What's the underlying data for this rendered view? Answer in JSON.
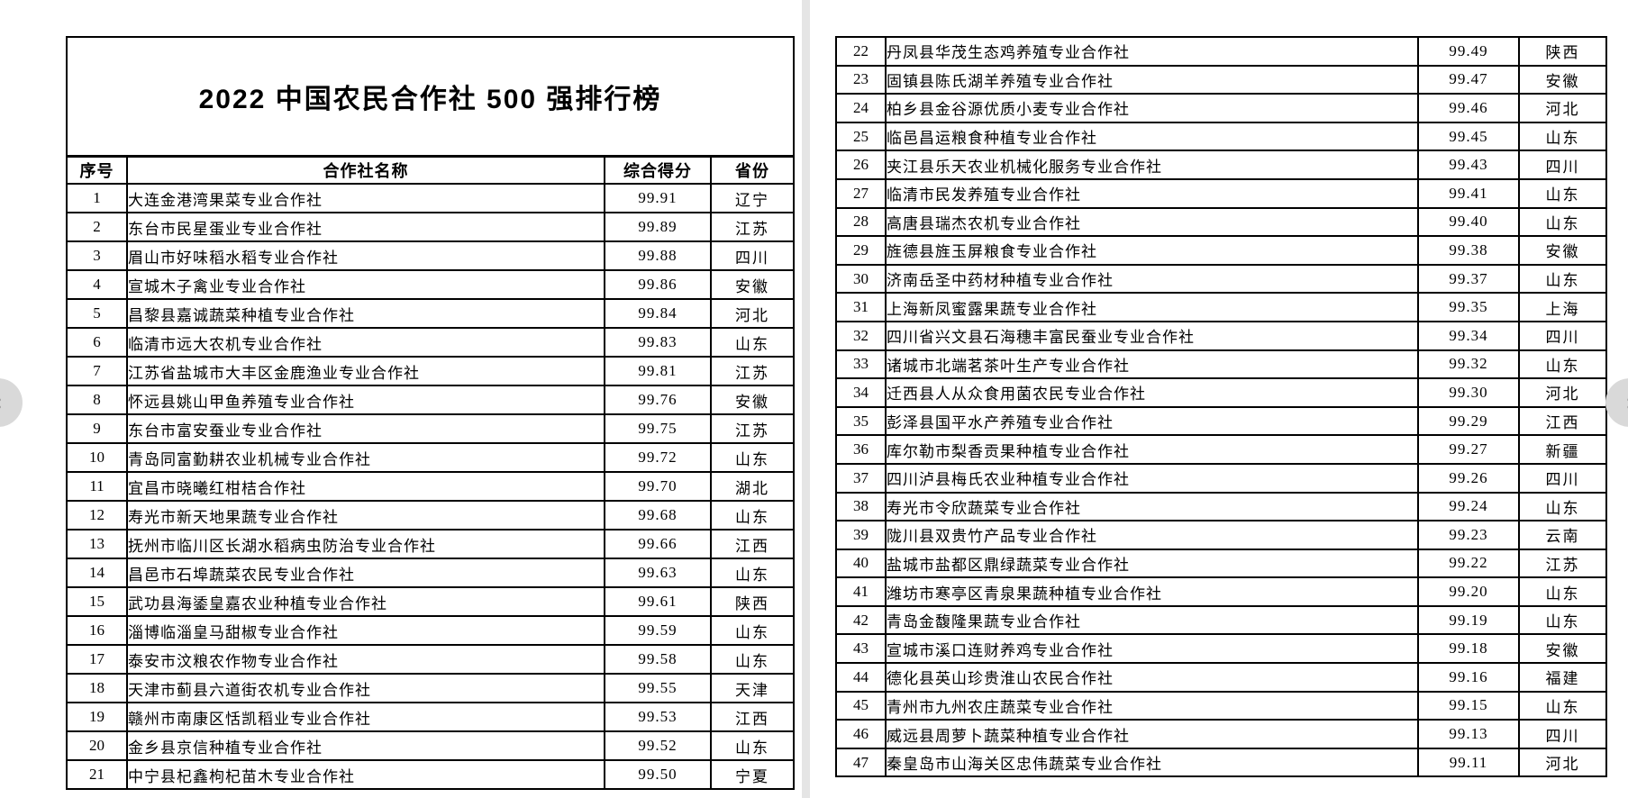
{
  "title": "2022 中国农民合作社 500 强排行榜",
  "columns": [
    "序号",
    "合作社名称",
    "综合得分",
    "省份"
  ],
  "pages": {
    "left": {
      "rows": [
        {
          "rank": "1",
          "name": "大连金港湾果菜专业合作社",
          "score": "99.91",
          "province": "辽宁"
        },
        {
          "rank": "2",
          "name": "东台市民星蛋业专业合作社",
          "score": "99.89",
          "province": "江苏"
        },
        {
          "rank": "3",
          "name": "眉山市好味稻水稻专业合作社",
          "score": "99.88",
          "province": "四川"
        },
        {
          "rank": "4",
          "name": "宣城木子禽业专业合作社",
          "score": "99.86",
          "province": "安徽"
        },
        {
          "rank": "5",
          "name": "昌黎县嘉诚蔬菜种植专业合作社",
          "score": "99.84",
          "province": "河北"
        },
        {
          "rank": "6",
          "name": "临清市远大农机专业合作社",
          "score": "99.83",
          "province": "山东"
        },
        {
          "rank": "7",
          "name": "江苏省盐城市大丰区金鹿渔业专业合作社",
          "score": "99.81",
          "province": "江苏"
        },
        {
          "rank": "8",
          "name": "怀远县姚山甲鱼养殖专业合作社",
          "score": "99.76",
          "province": "安徽"
        },
        {
          "rank": "9",
          "name": "东台市富安蚕业专业合作社",
          "score": "99.75",
          "province": "江苏"
        },
        {
          "rank": "10",
          "name": "青岛同富勤耕农业机械专业合作社",
          "score": "99.72",
          "province": "山东"
        },
        {
          "rank": "11",
          "name": "宜昌市晓曦红柑桔合作社",
          "score": "99.70",
          "province": "湖北"
        },
        {
          "rank": "12",
          "name": "寿光市新天地果蔬专业合作社",
          "score": "99.68",
          "province": "山东"
        },
        {
          "rank": "13",
          "name": "抚州市临川区长湖水稻病虫防治专业合作社",
          "score": "99.66",
          "province": "江西"
        },
        {
          "rank": "14",
          "name": "昌邑市石埠蔬菜农民专业合作社",
          "score": "99.63",
          "province": "山东"
        },
        {
          "rank": "15",
          "name": "武功县海鋈皇嘉农业种植专业合作社",
          "score": "99.61",
          "province": "陕西"
        },
        {
          "rank": "16",
          "name": "淄博临淄皇马甜椒专业合作社",
          "score": "99.59",
          "province": "山东"
        },
        {
          "rank": "17",
          "name": "泰安市汶粮农作物专业合作社",
          "score": "99.58",
          "province": "山东"
        },
        {
          "rank": "18",
          "name": "天津市蓟县六道街农机专业合作社",
          "score": "99.55",
          "province": "天津"
        },
        {
          "rank": "19",
          "name": "赣州市南康区恬凯稻业专业合作社",
          "score": "99.53",
          "province": "江西"
        },
        {
          "rank": "20",
          "name": "金乡县京信种植专业合作社",
          "score": "99.52",
          "province": "山东"
        },
        {
          "rank": "21",
          "name": "中宁县杞鑫枸杞苗木专业合作社",
          "score": "99.50",
          "province": "宁夏"
        }
      ]
    },
    "right": {
      "rows": [
        {
          "rank": "22",
          "name": "丹凤县华茂生态鸡养殖专业合作社",
          "score": "99.49",
          "province": "陕西"
        },
        {
          "rank": "23",
          "name": "固镇县陈氏湖羊养殖专业合作社",
          "score": "99.47",
          "province": "安徽"
        },
        {
          "rank": "24",
          "name": "柏乡县金谷源优质小麦专业合作社",
          "score": "99.46",
          "province": "河北"
        },
        {
          "rank": "25",
          "name": "临邑昌运粮食种植专业合作社",
          "score": "99.45",
          "province": "山东"
        },
        {
          "rank": "26",
          "name": "夹江县乐天农业机械化服务专业合作社",
          "score": "99.43",
          "province": "四川"
        },
        {
          "rank": "27",
          "name": "临清市民发养殖专业合作社",
          "score": "99.41",
          "province": "山东"
        },
        {
          "rank": "28",
          "name": "高唐县瑞杰农机专业合作社",
          "score": "99.40",
          "province": "山东"
        },
        {
          "rank": "29",
          "name": "旌德县旌玉屏粮食专业合作社",
          "score": "99.38",
          "province": "安徽"
        },
        {
          "rank": "30",
          "name": "济南岳圣中药材种植专业合作社",
          "score": "99.37",
          "province": "山东"
        },
        {
          "rank": "31",
          "name": "上海新凤蜜露果蔬专业合作社",
          "score": "99.35",
          "province": "上海"
        },
        {
          "rank": "32",
          "name": "四川省兴文县石海穗丰富民蚕业专业合作社",
          "score": "99.34",
          "province": "四川"
        },
        {
          "rank": "33",
          "name": "诸城市北端茗茶叶生产专业合作社",
          "score": "99.32",
          "province": "山东"
        },
        {
          "rank": "34",
          "name": "迁西县人从众食用菌农民专业合作社",
          "score": "99.30",
          "province": "河北"
        },
        {
          "rank": "35",
          "name": "彭泽县国平水产养殖专业合作社",
          "score": "99.29",
          "province": "江西"
        },
        {
          "rank": "36",
          "name": "库尔勒市梨香贡果种植专业合作社",
          "score": "99.27",
          "province": "新疆"
        },
        {
          "rank": "37",
          "name": "四川泸县梅氏农业种植专业合作社",
          "score": "99.26",
          "province": "四川"
        },
        {
          "rank": "38",
          "name": "寿光市令欣蔬菜专业合作社",
          "score": "99.24",
          "province": "山东"
        },
        {
          "rank": "39",
          "name": "陇川县双贵竹产品专业合作社",
          "score": "99.23",
          "province": "云南"
        },
        {
          "rank": "40",
          "name": "盐城市盐都区鼎绿蔬菜专业合作社",
          "score": "99.22",
          "province": "江苏"
        },
        {
          "rank": "41",
          "name": "潍坊市寒亭区青泉果蔬种植专业合作社",
          "score": "99.20",
          "province": "山东"
        },
        {
          "rank": "42",
          "name": "青岛金馥隆果蔬专业合作社",
          "score": "99.19",
          "province": "山东"
        },
        {
          "rank": "43",
          "name": "宣城市溪口连财养鸡专业合作社",
          "score": "99.18",
          "province": "安徽"
        },
        {
          "rank": "44",
          "name": "德化县英山珍贵淮山农民合作社",
          "score": "99.16",
          "province": "福建"
        },
        {
          "rank": "45",
          "name": "青州市九州农庄蔬菜专业合作社",
          "score": "99.15",
          "province": "山东"
        },
        {
          "rank": "46",
          "name": "威远县周萝卜蔬菜种植专业合作社",
          "score": "99.13",
          "province": "四川"
        },
        {
          "rank": "47",
          "name": "秦皇岛市山海关区忠伟蔬菜专业合作社",
          "score": "99.11",
          "province": "河北"
        }
      ]
    }
  },
  "nav": {
    "prev_icon": "‹",
    "next_icon": "›"
  },
  "colors": {
    "border": "#000000",
    "page_bg": "#ffffff",
    "gutter": "#e5e5e5",
    "nav_circle": "#d9d9d9"
  }
}
